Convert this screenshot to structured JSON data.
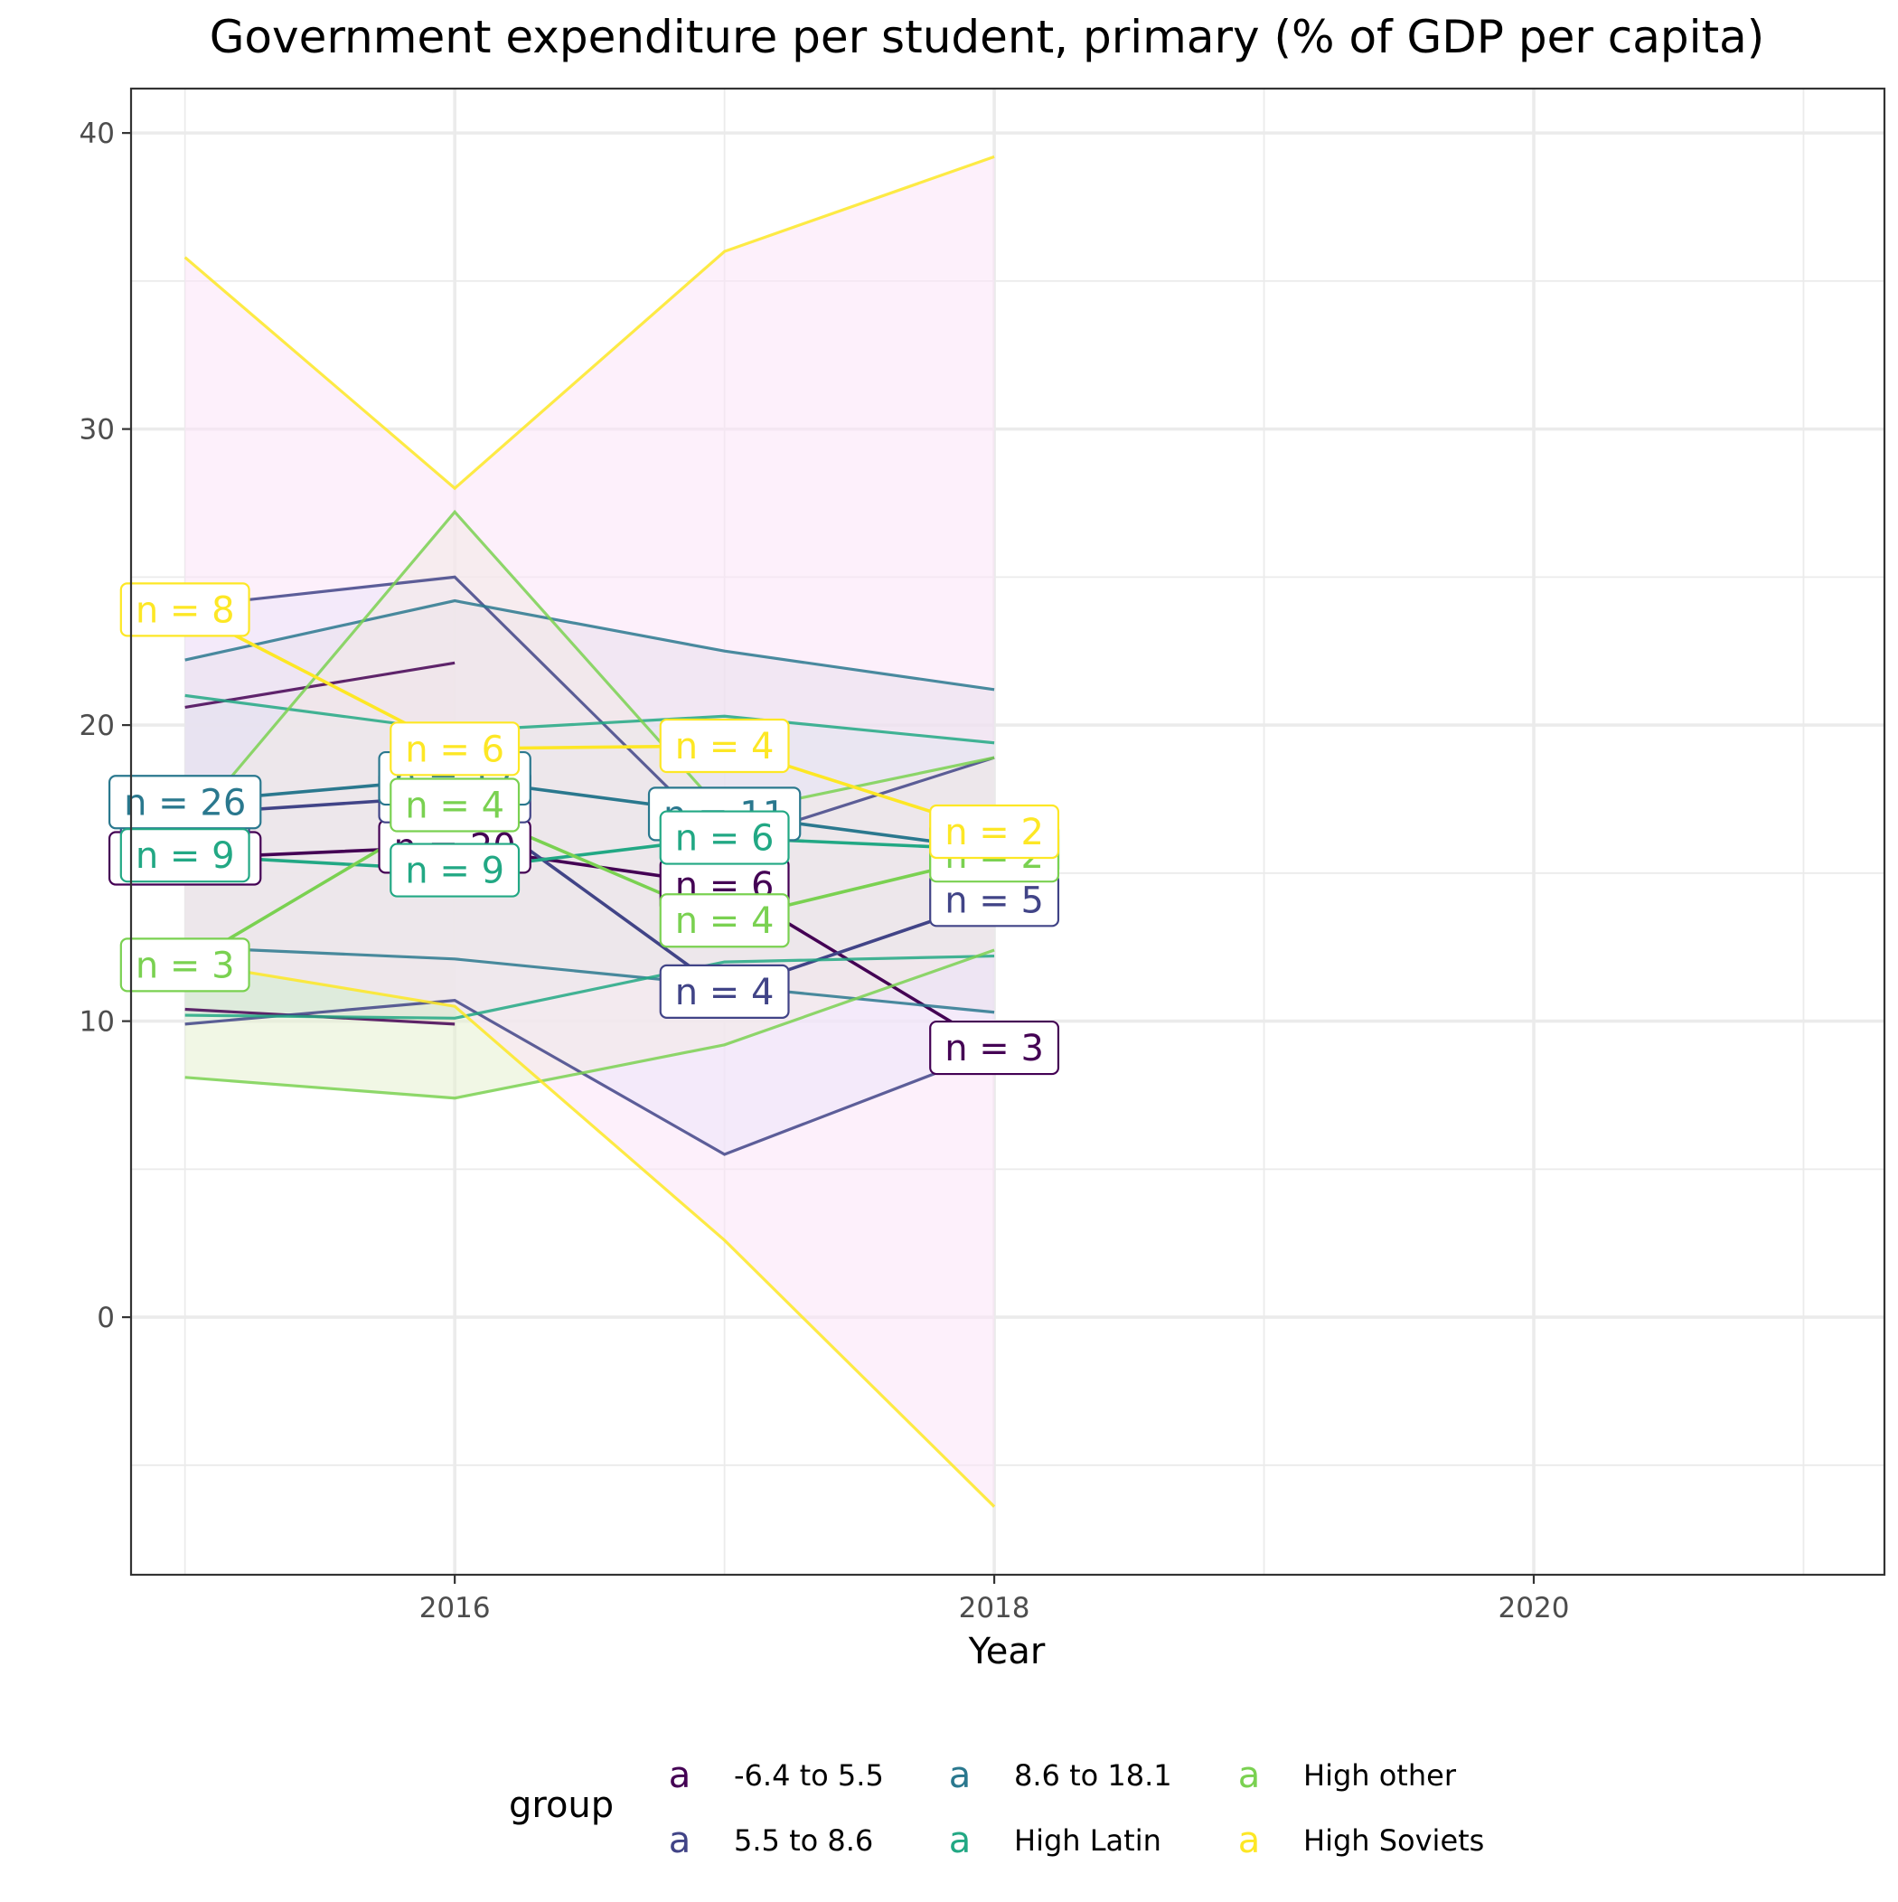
{
  "chart_data": {
    "type": "line",
    "title": "Government expenditure per student, primary (% of GDP per capita)",
    "xlabel": "Year",
    "ylabel": "",
    "xlim": [
      2014.8,
      2021.3
    ],
    "ylim": [
      -8.7,
      41.5
    ],
    "x_ticks": [
      2016,
      2018,
      2020
    ],
    "y_ticks": [
      0,
      10,
      20,
      30,
      40
    ],
    "grid": true,
    "legend": {
      "title": "group",
      "position": "bottom",
      "key_glyph": "a",
      "entries": [
        "-6.4 to 5.5",
        "5.5 to 8.6",
        "8.6 to 18.1",
        "High Latin",
        "High other",
        "High Soviets"
      ]
    },
    "x": [
      2015,
      2016,
      2017,
      2018
    ],
    "series": [
      {
        "name": "-6.4 to 5.5",
        "color": "#440154",
        "fill": "#f7c8d4",
        "mean": [
          15.5,
          15.9,
          14.6,
          9.1
        ],
        "upper": [
          20.6,
          22.1,
          null,
          15.1
        ],
        "lower": [
          10.4,
          9.9,
          null,
          3.5
        ],
        "labels": [
          "n = 28",
          "n = 20",
          "n = 6",
          "n = 3"
        ]
      },
      {
        "name": "5.5 to 8.6",
        "color": "#414487",
        "fill": "#dbe6fa",
        "mean": [
          17.0,
          17.6,
          11.0,
          14.1
        ],
        "upper": [
          24.0,
          25.0,
          16.0,
          18.9
        ],
        "lower": [
          9.9,
          10.7,
          5.5,
          9.0
        ],
        "labels": [
          "n = 8",
          "n = 11",
          "n = 4",
          "n = 5"
        ]
      },
      {
        "name": "8.6 to 18.1",
        "color": "#2a788e",
        "fill": "#d4dce0",
        "mean": [
          17.4,
          18.2,
          17.0,
          15.8
        ],
        "upper": [
          22.2,
          24.2,
          22.5,
          21.2
        ],
        "lower": [
          12.5,
          12.1,
          11.2,
          10.3
        ],
        "labels": [
          "n = 26",
          "n = 17",
          "n = 11",
          "n = 5"
        ]
      },
      {
        "name": "High Latin",
        "color": "#22a884",
        "fill": "#c6e6e8",
        "mean": [
          15.6,
          15.1,
          16.2,
          15.8
        ],
        "upper": [
          21.0,
          19.8,
          20.3,
          19.4
        ],
        "lower": [
          10.2,
          10.1,
          12.0,
          12.2
        ],
        "labels": [
          "n = 9",
          "n = 9",
          "n = 6",
          "n = 2"
        ]
      },
      {
        "name": "High other",
        "color": "#7ad151",
        "fill": "#e6f0cf",
        "mean": [
          11.9,
          17.3,
          13.4,
          15.6
        ],
        "upper": [
          16.4,
          27.2,
          17.0,
          18.9
        ],
        "lower": [
          8.1,
          7.4,
          9.2,
          12.4
        ],
        "labels": [
          "n = 3",
          "n = 4",
          "n = 4",
          "n = 2"
        ]
      },
      {
        "name": "High Soviets",
        "color": "#fde725",
        "fill": "#fbe4f8",
        "mean": [
          23.9,
          19.2,
          19.3,
          16.4
        ],
        "upper": [
          35.8,
          28.0,
          36.0,
          39.2
        ],
        "lower": [
          12.0,
          10.5,
          2.6,
          -6.4
        ],
        "labels": [
          "n = 8",
          "n = 6",
          "n = 4",
          "n = 2"
        ]
      }
    ]
  }
}
